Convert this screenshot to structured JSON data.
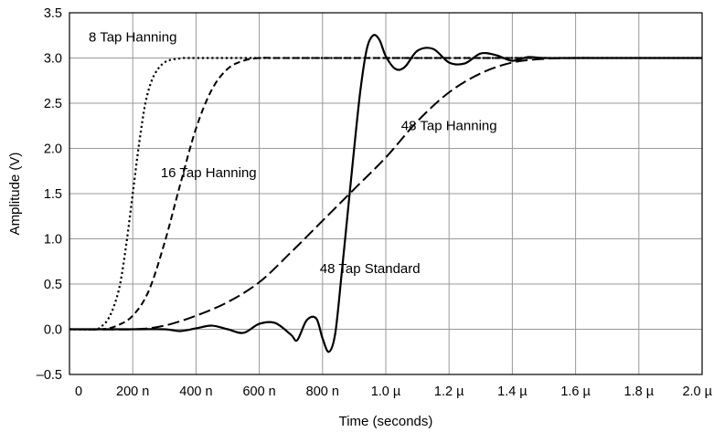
{
  "chart_data": {
    "type": "line",
    "xlabel": "Time (seconds)",
    "ylabel": "Amplitude  (V)",
    "xlim": [
      0,
      2.0
    ],
    "ylim": [
      -0.5,
      3.5
    ],
    "grid": true,
    "x_ticks": [
      {
        "value": 0,
        "label": "0"
      },
      {
        "value": 0.2,
        "label": "200 n"
      },
      {
        "value": 0.4,
        "label": "400 n"
      },
      {
        "value": 0.6,
        "label": "600 n"
      },
      {
        "value": 0.8,
        "label": "800 n"
      },
      {
        "value": 1.0,
        "label": "1.0 µ"
      },
      {
        "value": 1.2,
        "label": "1.2 µ"
      },
      {
        "value": 1.4,
        "label": "1.4 µ"
      },
      {
        "value": 1.6,
        "label": "1.6 µ"
      },
      {
        "value": 1.8,
        "label": "1.8 µ"
      },
      {
        "value": 2.0,
        "label": "2.0 µ"
      }
    ],
    "y_ticks": [
      {
        "value": 3.5,
        "label": "3.5"
      },
      {
        "value": 3.0,
        "label": "3.0"
      },
      {
        "value": 2.5,
        "label": "2.5"
      },
      {
        "value": 2.0,
        "label": "2.0"
      },
      {
        "value": 1.5,
        "label": "1.5"
      },
      {
        "value": 1.0,
        "label": "1.0"
      },
      {
        "value": 0.5,
        "label": "0.5"
      },
      {
        "value": 0.0,
        "label": "0.0"
      },
      {
        "value": -0.5,
        "label": "–0.5"
      }
    ],
    "series": [
      {
        "name": "8 Tap Hanning",
        "style": "dotted",
        "label_at": [
          0.2,
          3.18
        ],
        "x": [
          0,
          0.08,
          0.1,
          0.12,
          0.14,
          0.16,
          0.18,
          0.2,
          0.22,
          0.24,
          0.26,
          0.28,
          0.3,
          0.32,
          0.34,
          0.36,
          0.38,
          0.4,
          0.5,
          1.0,
          2.0
        ],
        "y": [
          0.0,
          0.0,
          0.03,
          0.1,
          0.25,
          0.5,
          0.95,
          1.5,
          2.05,
          2.5,
          2.75,
          2.88,
          2.95,
          2.98,
          2.99,
          3.0,
          3.0,
          3.0,
          3.0,
          3.0,
          3.0
        ]
      },
      {
        "name": "16 Tap Hanning",
        "style": "dashed",
        "label_at": [
          0.44,
          1.68
        ],
        "x": [
          0,
          0.1,
          0.15,
          0.2,
          0.25,
          0.3,
          0.35,
          0.4,
          0.45,
          0.5,
          0.55,
          0.6,
          0.65,
          0.7,
          1.0,
          2.0
        ],
        "y": [
          0.0,
          0.0,
          0.04,
          0.15,
          0.42,
          0.95,
          1.6,
          2.22,
          2.65,
          2.88,
          2.97,
          3.0,
          3.0,
          3.0,
          3.0,
          3.0
        ]
      },
      {
        "name": "48 Tap Hanning",
        "style": "long-dash",
        "label_at": [
          1.2,
          2.2
        ],
        "x": [
          0,
          0.2,
          0.3,
          0.4,
          0.5,
          0.6,
          0.7,
          0.8,
          0.9,
          1.0,
          1.1,
          1.2,
          1.3,
          1.4,
          1.5,
          1.6,
          1.7,
          2.0
        ],
        "y": [
          0.0,
          0.0,
          0.04,
          0.15,
          0.3,
          0.52,
          0.85,
          1.2,
          1.55,
          1.9,
          2.3,
          2.62,
          2.83,
          2.95,
          2.99,
          3.0,
          3.0,
          3.0
        ]
      },
      {
        "name": "48 Tap Standard",
        "style": "solid",
        "label_at": [
          0.95,
          0.62
        ],
        "x": [
          0,
          0.2,
          0.3,
          0.35,
          0.4,
          0.45,
          0.5,
          0.55,
          0.6,
          0.65,
          0.7,
          0.72,
          0.75,
          0.78,
          0.8,
          0.82,
          0.84,
          0.86,
          0.88,
          0.9,
          0.92,
          0.94,
          0.96,
          0.98,
          1.0,
          1.03,
          1.06,
          1.1,
          1.15,
          1.2,
          1.25,
          1.3,
          1.35,
          1.4,
          1.45,
          1.5,
          1.6,
          2.0
        ],
        "y": [
          0.0,
          0.0,
          0.0,
          -0.02,
          0.01,
          0.04,
          0.0,
          -0.04,
          0.06,
          0.07,
          -0.06,
          -0.12,
          0.1,
          0.12,
          -0.1,
          -0.25,
          -0.05,
          0.6,
          1.3,
          2.0,
          2.65,
          3.1,
          3.25,
          3.2,
          3.02,
          2.88,
          2.9,
          3.08,
          3.1,
          2.95,
          2.94,
          3.05,
          3.03,
          2.97,
          3.01,
          3.0,
          3.0,
          3.0
        ]
      }
    ]
  }
}
